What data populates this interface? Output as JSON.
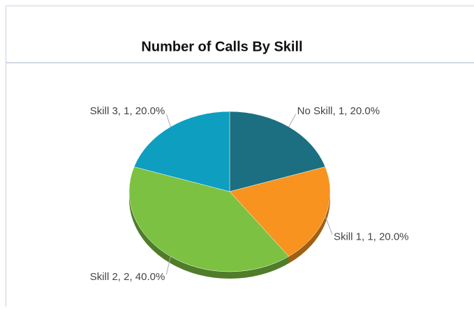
{
  "chart_data": {
    "type": "pie",
    "title": "Number of Calls By Skill",
    "values": [
      1,
      1,
      2,
      1
    ],
    "value_labels": [
      "No Skill, 1, 20.0%",
      "Skill 1, 1, 20.0%",
      "Skill 2, 2, 40.0%",
      "Skill 3, 1, 20.0%"
    ],
    "colors": [
      "#1b6f81",
      "#f7931e",
      "#7cc142",
      "#0e9ec0"
    ]
  }
}
